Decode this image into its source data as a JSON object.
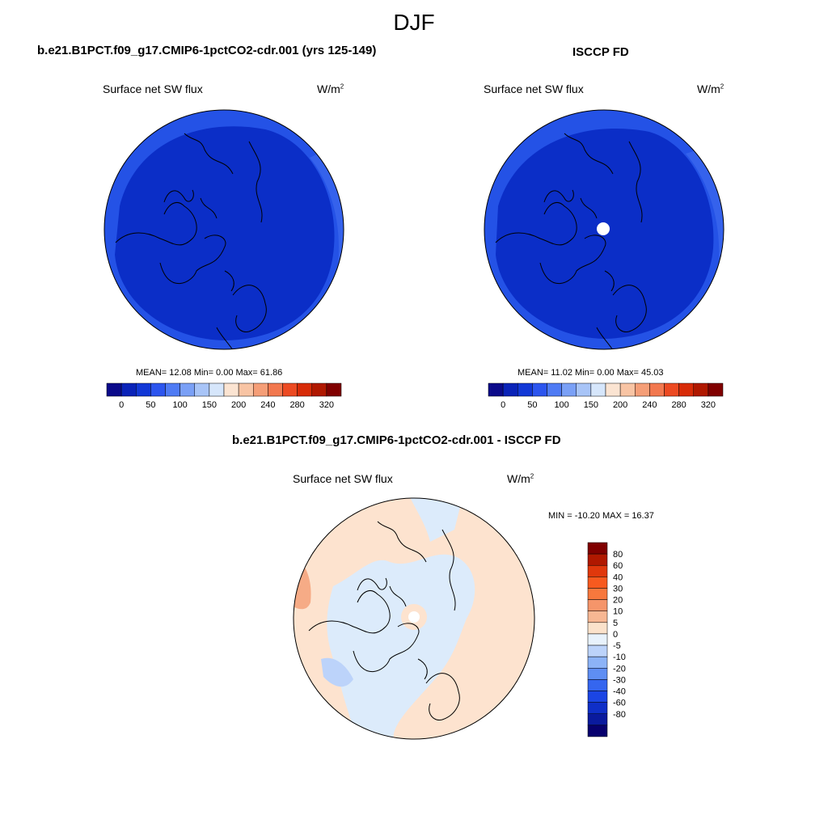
{
  "title": "DJF",
  "panels": [
    {
      "title": "b.e21.B1PCT.f09_g17.CMIP6-1pctCO2-cdr.001 (yrs 125-149)",
      "variable": "Surface net SW flux",
      "unit": "W/m",
      "unit_sup": "2",
      "stats": "MEAN=  12.08  Min=   0.00  Max=  61.86"
    },
    {
      "title": "ISCCP FD",
      "variable": "Surface net SW flux",
      "unit": "W/m",
      "unit_sup": "2",
      "stats": "MEAN=  11.02  Min=   0.00  Max=  45.03"
    },
    {
      "title": "b.e21.B1PCT.f09_g17.CMIP6-1pctCO2-cdr.001 - ISCCP FD",
      "variable": "Surface net SW flux",
      "unit": "W/m",
      "unit_sup": "2",
      "stats": "MIN = -10.20 MAX =  16.37"
    }
  ],
  "colorbar_abs": {
    "colors": [
      "#0b0a8a",
      "#0a23b8",
      "#1238d6",
      "#2c55ee",
      "#4f7bf4",
      "#7aa0f6",
      "#a8c4f7",
      "#d6e6fb",
      "#fbe4d2",
      "#f8c4a4",
      "#f59e77",
      "#f2784f",
      "#ec4a22",
      "#d72b08",
      "#b01800",
      "#800000"
    ],
    "ticks": [
      "0",
      "50",
      "100",
      "150",
      "200",
      "240",
      "280",
      "320"
    ]
  },
  "colorbar_diff": {
    "colors": [
      "#800000",
      "#b01800",
      "#e0380c",
      "#f75a1f",
      "#f7783d",
      "#f5956a",
      "#f7b793",
      "#fbe2cb",
      "#e8f2fc",
      "#bcd3fa",
      "#8cb3f7",
      "#5e8ef3",
      "#3566ef",
      "#1b45e4",
      "#0f2fc8",
      "#0a1a9e",
      "#07006e"
    ],
    "ticks": [
      "80",
      "60",
      "40",
      "30",
      "20",
      "10",
      "5",
      "0",
      "-5",
      "-10",
      "-20",
      "-30",
      "-40",
      "-60",
      "-80"
    ]
  },
  "colors": {
    "polar_dark": "#0b2ec7",
    "polar_light": "#1f4fe4",
    "diff_pale_blue": "#dcebfb",
    "diff_peach": "#fde3cf",
    "diff_orange": "#f6ab86"
  }
}
